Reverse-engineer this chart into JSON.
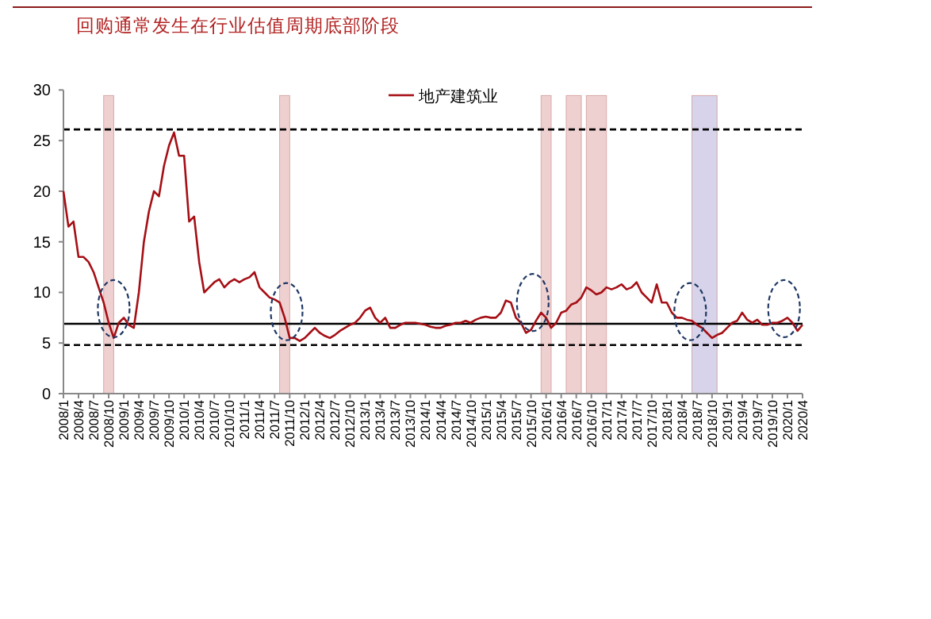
{
  "chart_data": {
    "type": "line",
    "title": "回购通常发生在行业估值周期底部阶段",
    "x": [
      "2008-01",
      "2008-02",
      "2008-03",
      "2008-04",
      "2008-05",
      "2008-06",
      "2008-07",
      "2008-08",
      "2008-09",
      "2008-10",
      "2008-11",
      "2008-12",
      "2009-01",
      "2009-02",
      "2009-03",
      "2009-04",
      "2009-05",
      "2009-06",
      "2009-07",
      "2009-08",
      "2009-09",
      "2009-10",
      "2009-11",
      "2009-12",
      "2010-01",
      "2010-02",
      "2010-03",
      "2010-04",
      "2010-05",
      "2010-06",
      "2010-07",
      "2010-08",
      "2010-09",
      "2010-10",
      "2010-11",
      "2010-12",
      "2011-01",
      "2011-02",
      "2011-03",
      "2011-04",
      "2011-05",
      "2011-06",
      "2011-07",
      "2011-08",
      "2011-09",
      "2011-10",
      "2011-11",
      "2011-12",
      "2012-01",
      "2012-02",
      "2012-03",
      "2012-04",
      "2012-05",
      "2012-06",
      "2012-07",
      "2012-08",
      "2012-09",
      "2012-10",
      "2012-11",
      "2012-12",
      "2013-01",
      "2013-02",
      "2013-03",
      "2013-04",
      "2013-05",
      "2013-06",
      "2013-07",
      "2013-08",
      "2013-09",
      "2013-10",
      "2013-11",
      "2013-12",
      "2014-01",
      "2014-02",
      "2014-03",
      "2014-04",
      "2014-05",
      "2014-06",
      "2014-07",
      "2014-08",
      "2014-09",
      "2014-10",
      "2014-11",
      "2014-12",
      "2015-01",
      "2015-02",
      "2015-03",
      "2015-04",
      "2015-05",
      "2015-06",
      "2015-07",
      "2015-08",
      "2015-09",
      "2015-10",
      "2015-11",
      "2015-12",
      "2016-01",
      "2016-02",
      "2016-03",
      "2016-04",
      "2016-05",
      "2016-06",
      "2016-07",
      "2016-08",
      "2016-09",
      "2016-10",
      "2016-11",
      "2016-12",
      "2017-01",
      "2017-02",
      "2017-03",
      "2017-04",
      "2017-05",
      "2017-06",
      "2017-07",
      "2017-08",
      "2017-09",
      "2017-10",
      "2017-11",
      "2017-12",
      "2018-01",
      "2018-02",
      "2018-03",
      "2018-04",
      "2018-05",
      "2018-06",
      "2018-07",
      "2018-08",
      "2018-09",
      "2018-10",
      "2018-11",
      "2018-12",
      "2019-01",
      "2019-02",
      "2019-03",
      "2019-04",
      "2019-05",
      "2019-06",
      "2019-07",
      "2019-08",
      "2019-09",
      "2019-10",
      "2019-11",
      "2019-12",
      "2020-01",
      "2020-02",
      "2020-03",
      "2020-04"
    ],
    "series": [
      {
        "name": "地产建筑业",
        "color": "#a50f15",
        "values": [
          20,
          16.5,
          17,
          13.5,
          13.5,
          13,
          12,
          10.5,
          9,
          7,
          5.5,
          7,
          7.5,
          6.8,
          6.5,
          10,
          15,
          18,
          20,
          19.5,
          22.5,
          24.5,
          25.8,
          23.5,
          23.5,
          17,
          17.5,
          13,
          10,
          10.5,
          11,
          11.3,
          10.5,
          11,
          11.3,
          11,
          11.3,
          11.5,
          12,
          10.5,
          10,
          9.5,
          9.3,
          9,
          7.5,
          5.5,
          5.5,
          5.2,
          5.5,
          6,
          6.5,
          6,
          5.7,
          5.5,
          5.8,
          6.2,
          6.5,
          6.8,
          7,
          7.5,
          8.2,
          8.5,
          7.5,
          7,
          7.5,
          6.5,
          6.5,
          6.8,
          7,
          7,
          7,
          6.9,
          6.8,
          6.6,
          6.5,
          6.5,
          6.7,
          6.8,
          7,
          7,
          7.2,
          7,
          7.3,
          7.5,
          7.6,
          7.5,
          7.5,
          8,
          9.2,
          9,
          7.5,
          7,
          6,
          6.3,
          7.2,
          8,
          7.5,
          6.5,
          7,
          8,
          8.2,
          8.8,
          9,
          9.5,
          10.5,
          10.2,
          9.8,
          10,
          10.5,
          10.3,
          10.5,
          10.8,
          10.3,
          10.5,
          11,
          10,
          9.5,
          9,
          10.8,
          9,
          9,
          8,
          7.5,
          7.5,
          7.3,
          7.2,
          6.8,
          6.5,
          6,
          5.5,
          5.8,
          6,
          6.5,
          7,
          7.2,
          8,
          7.3,
          7,
          7.3,
          6.8,
          6.8,
          7,
          7,
          7.2,
          7.5,
          7,
          6.2,
          6.8
        ]
      }
    ],
    "xlim": [
      "2008-01",
      "2020-04"
    ],
    "xticks": [
      {
        "value": "2008-01",
        "label": "2008/1"
      },
      {
        "value": "2008-04",
        "label": "2008/4"
      },
      {
        "value": "2008-07",
        "label": "2008/7"
      },
      {
        "value": "2008-10",
        "label": "2008/10"
      },
      {
        "value": "2009-01",
        "label": "2009/1"
      },
      {
        "value": "2009-04",
        "label": "2009/4"
      },
      {
        "value": "2009-07",
        "label": "2009/7"
      },
      {
        "value": "2009-10",
        "label": "2009/10"
      },
      {
        "value": "2010-01",
        "label": "2010/1"
      },
      {
        "value": "2010-04",
        "label": "2010/4"
      },
      {
        "value": "2010-07",
        "label": "2010/7"
      },
      {
        "value": "2010-10",
        "label": "2010/10"
      },
      {
        "value": "2011-01",
        "label": "2011/1"
      },
      {
        "value": "2011-04",
        "label": "2011/4"
      },
      {
        "value": "2011-07",
        "label": "2011/7"
      },
      {
        "value": "2011-10",
        "label": "2011/10"
      },
      {
        "value": "2012-01",
        "label": "2012/1"
      },
      {
        "value": "2012-04",
        "label": "2012/4"
      },
      {
        "value": "2012-07",
        "label": "2012/7"
      },
      {
        "value": "2012-10",
        "label": "2012/10"
      },
      {
        "value": "2013-01",
        "label": "2013/1"
      },
      {
        "value": "2013-04",
        "label": "2013/4"
      },
      {
        "value": "2013-07",
        "label": "2013/7"
      },
      {
        "value": "2013-10",
        "label": "2013/10"
      },
      {
        "value": "2014-01",
        "label": "2014/1"
      },
      {
        "value": "2014-04",
        "label": "2014/4"
      },
      {
        "value": "2014-07",
        "label": "2014/7"
      },
      {
        "value": "2014-10",
        "label": "2014/10"
      },
      {
        "value": "2015-01",
        "label": "2015/1"
      },
      {
        "value": "2015-04",
        "label": "2015/4"
      },
      {
        "value": "2015-07",
        "label": "2015/7"
      },
      {
        "value": "2015-10",
        "label": "2015/10"
      },
      {
        "value": "2016-01",
        "label": "2016/1"
      },
      {
        "value": "2016-04",
        "label": "2016/4"
      },
      {
        "value": "2016-07",
        "label": "2016/7"
      },
      {
        "value": "2016-10",
        "label": "2016/10"
      },
      {
        "value": "2017-01",
        "label": "2017/1"
      },
      {
        "value": "2017-04",
        "label": "2017/4"
      },
      {
        "value": "2017-07",
        "label": "2017/7"
      },
      {
        "value": "2017-10",
        "label": "2017/10"
      },
      {
        "value": "2018-01",
        "label": "2018/1"
      },
      {
        "value": "2018-04",
        "label": "2018/4"
      },
      {
        "value": "2018-07",
        "label": "2018/7"
      },
      {
        "value": "2018-10",
        "label": "2018/10"
      },
      {
        "value": "2019-01",
        "label": "2019/1"
      },
      {
        "value": "2019-04",
        "label": "2019/4"
      },
      {
        "value": "2019-07",
        "label": "2019/7"
      },
      {
        "value": "2019-10",
        "label": "2019/10"
      },
      {
        "value": "2020-01",
        "label": "2020/1"
      },
      {
        "value": "2020-04",
        "label": "2020/4"
      }
    ],
    "ylim": [
      0,
      30
    ],
    "yticks": [
      0,
      5,
      10,
      15,
      20,
      25,
      30
    ],
    "ref_lines": [
      {
        "axis": "y",
        "value": 26.1,
        "color": "#000000",
        "line_style": "dashed"
      },
      {
        "axis": "y",
        "value": 6.9,
        "color": "#000000",
        "line_style": "solid"
      },
      {
        "axis": "y",
        "value": 4.8,
        "color": "#000000",
        "line_style": "dashed"
      }
    ],
    "bands": [
      {
        "axis": "x",
        "from": "2008-09",
        "to": "2008-11",
        "color": "#efd0d0"
      },
      {
        "axis": "x",
        "from": "2011-08",
        "to": "2011-10",
        "color": "#efd0d0"
      },
      {
        "axis": "x",
        "from": "2015-12",
        "to": "2016-02",
        "color": "#efd0d0"
      },
      {
        "axis": "x",
        "from": "2016-05",
        "to": "2016-08",
        "color": "#efd0d0"
      },
      {
        "axis": "x",
        "from": "2016-09",
        "to": "2017-01",
        "color": "#efd0d0"
      },
      {
        "axis": "x",
        "from": "2018-06",
        "to": "2018-11",
        "color": "#d6d3ea"
      }
    ],
    "legend": "top",
    "grid": false,
    "line_style": "solid",
    "marker": "none"
  }
}
